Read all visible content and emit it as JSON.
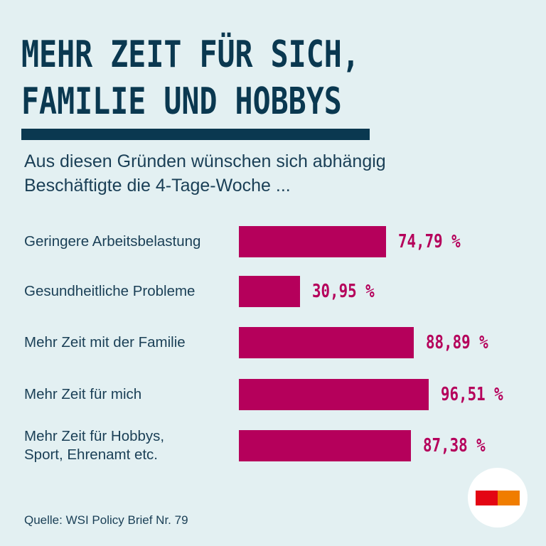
{
  "header": {
    "title_line1": "MEHR ZEIT FÜR SICH,",
    "title_line2": "FAMILIE UND HOBBYS",
    "subtitle": "Aus diesen Gründen wünschen sich abhängig Beschäftigte die 4-Tage-Woche ..."
  },
  "chart_data": {
    "type": "bar",
    "orientation": "horizontal",
    "categories": [
      "Geringere Arbeitsbelastung",
      "Gesundheitliche Probleme",
      "Mehr Zeit mit der Familie",
      "Mehr Zeit für mich",
      "Mehr Zeit für Hobbys,\nSport, Ehrenamt etc."
    ],
    "values": [
      74.79,
      30.95,
      88.89,
      96.51,
      87.38
    ],
    "value_labels": [
      "74,79 %",
      "30,95 %",
      "88,89 %",
      "96,51 %",
      "87,38 %"
    ],
    "xlim": [
      0,
      100
    ],
    "grid": false,
    "bar_color": "#b5005b"
  },
  "source": "Quelle: WSI Policy Brief Nr. 79",
  "colors": {
    "title": "#0a3850",
    "background": "#e3f0f2",
    "logo_red": "#e30613",
    "logo_orange": "#f07d00"
  }
}
